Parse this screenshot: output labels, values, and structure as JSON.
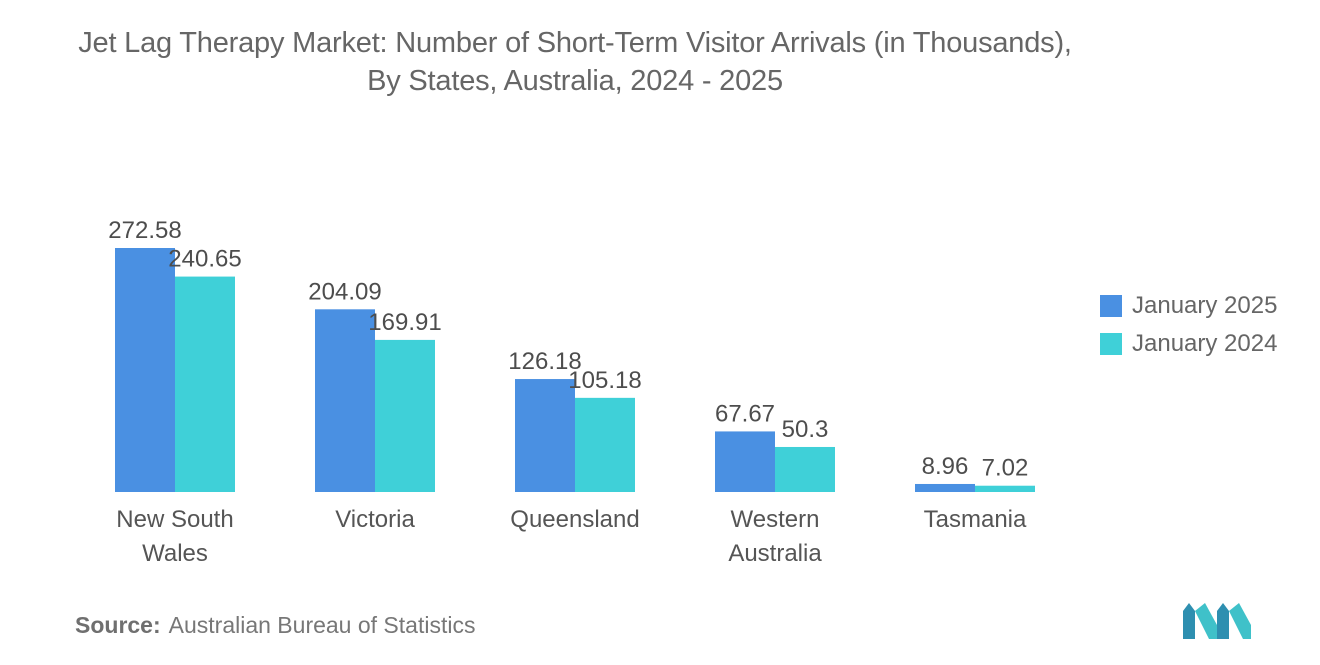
{
  "title": "Jet Lag Therapy Market: Number of Short-Term Visitor Arrivals (in Thousands), By States, Australia, 2024 - 2025",
  "source_label": "Source:",
  "source_text": "Australian Bureau of Statistics",
  "colors": {
    "january_2025": "#4a90e2",
    "january_2024": "#3fd0d8",
    "text": "#555555",
    "logo": "#36a9b8"
  },
  "logo_icon": "mordor-intelligence-logo",
  "chart_data": {
    "type": "bar",
    "title": "Jet Lag Therapy Market: Number of Short-Term Visitor Arrivals (in Thousands), By States, Australia, 2024 - 2025",
    "xlabel": "",
    "ylabel": "",
    "ylim": [
      0,
      280
    ],
    "grid": false,
    "legend_position": "right",
    "categories": [
      [
        "New South",
        "Wales"
      ],
      [
        "Victoria"
      ],
      [
        "Queensland"
      ],
      [
        "Western",
        "Australia"
      ],
      [
        "Tasmania"
      ]
    ],
    "series": [
      {
        "name": "January 2025",
        "values": [
          272.58,
          204.09,
          126.18,
          67.67,
          8.96
        ],
        "labels": [
          "272.58",
          "204.09",
          "126.18",
          "67.67",
          "8.96"
        ]
      },
      {
        "name": "January 2024",
        "values": [
          240.65,
          169.91,
          105.18,
          50.3,
          7.02
        ],
        "labels": [
          "240.65",
          "169.91",
          "105.18",
          "50.3",
          "7.02"
        ]
      }
    ]
  }
}
